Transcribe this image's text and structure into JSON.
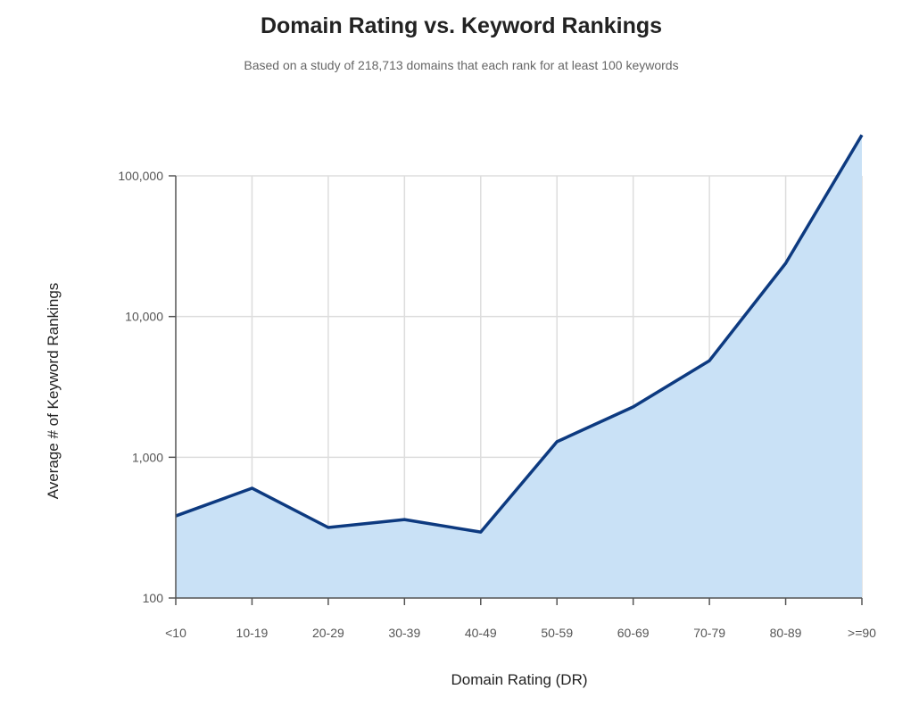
{
  "chart_data": {
    "type": "area",
    "title": "Domain Rating vs. Keyword Rankings",
    "subtitle": "Based on a study of 218,713 domains that each rank for at least 100 keywords",
    "xlabel": "Domain Rating (DR)",
    "ylabel": "Average # of Keyword Rankings",
    "yscale": "log",
    "ylim": [
      100,
      100000
    ],
    "yticks": [
      100,
      1000,
      10000,
      100000
    ],
    "ytick_labels": [
      "100",
      "1,000",
      "10,000",
      "100,000"
    ],
    "grid": true,
    "categories": [
      "<10",
      "10-19",
      "20-29",
      "30-39",
      "40-49",
      "50-59",
      "60-69",
      "70-79",
      "80-89",
      ">=90"
    ],
    "series": [
      {
        "name": "Average # of Keyword Rankings",
        "values": [
          383,
          603,
          317,
          361,
          294,
          1290,
          2280,
          4860,
          23900,
          195000
        ]
      }
    ],
    "colors": {
      "line": "#0d3a80",
      "fill": "#c9e1f6",
      "grid": "#dddddd",
      "axis": "#555555"
    }
  }
}
